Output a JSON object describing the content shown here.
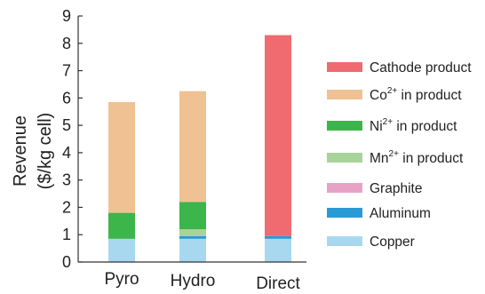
{
  "chart_data": {
    "type": "bar",
    "stacked": true,
    "categories": [
      "Pyro",
      "Hydro",
      "Direct"
    ],
    "ylabel": [
      "Revenue",
      "($/kg cell)"
    ],
    "ylim": [
      0,
      9
    ],
    "yticks": [
      0,
      1,
      2,
      3,
      4,
      5,
      6,
      7,
      8,
      9
    ],
    "grid": false,
    "legend_position": "right",
    "series": [
      {
        "name": "Copper",
        "base": "Copper",
        "sup": "",
        "suffix": "",
        "color": "#a8d8f0",
        "values": [
          0.85,
          0.85,
          0.85
        ]
      },
      {
        "name": "Aluminum",
        "base": "Aluminum",
        "sup": "",
        "suffix": "",
        "color": "#2a9ad6",
        "values": [
          0.0,
          0.1,
          0.1
        ]
      },
      {
        "name": "Graphite",
        "base": "Graphite",
        "sup": "",
        "suffix": "",
        "color": "#e6a3c6",
        "values": [
          0.0,
          0.0,
          0.0
        ]
      },
      {
        "name": "Mn2+ in product",
        "base": "Mn",
        "sup": "2+",
        "suffix": " in product",
        "color": "#a8d39a",
        "values": [
          0.0,
          0.25,
          0.0
        ]
      },
      {
        "name": "Ni2+ in product",
        "base": "Ni",
        "sup": "2+",
        "suffix": " in product",
        "color": "#3cb54a",
        "values": [
          0.95,
          1.0,
          0.0
        ]
      },
      {
        "name": "Co2+ in product",
        "base": "Co",
        "sup": "2+",
        "suffix": " in product",
        "color": "#efc193",
        "values": [
          4.05,
          4.05,
          0.0
        ]
      },
      {
        "name": "Cathode product",
        "base": "Cathode product",
        "sup": "",
        "suffix": "",
        "color": "#ef6b6f",
        "values": [
          0.0,
          0.0,
          7.35
        ]
      }
    ],
    "legend_order": [
      "Cathode product",
      "Co2+ in product",
      "Ni2+ in product",
      "Mn2+ in product",
      "Graphite",
      "Aluminum",
      "Copper"
    ]
  }
}
